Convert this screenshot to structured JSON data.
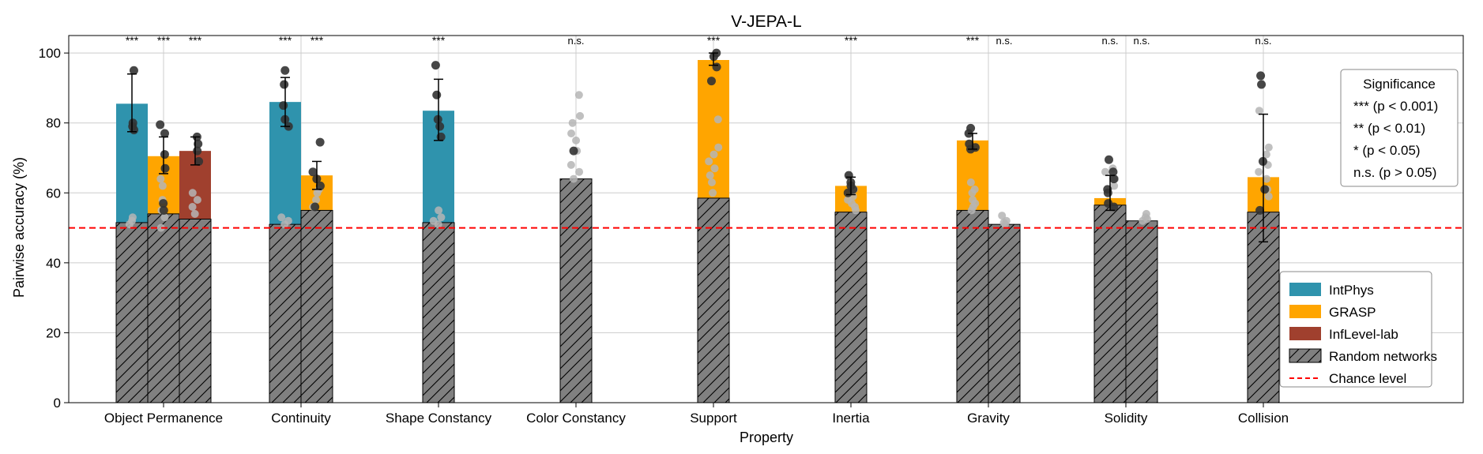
{
  "chart_data": {
    "type": "bar",
    "title": "V-JEPA-L",
    "xlabel": "Property",
    "ylabel": "Pairwise accuracy (%)",
    "ylim": [
      0,
      105
    ],
    "yticks": [
      0,
      20,
      40,
      60,
      80,
      100
    ],
    "grid": true,
    "chance_level": 50,
    "categories": [
      "Object Permanence",
      "Continuity",
      "Shape Constancy",
      "Color Constancy",
      "Support",
      "Inertia",
      "Gravity",
      "Solidity",
      "Collision"
    ],
    "series": [
      {
        "name": "IntPhys",
        "color": "#2f93ad"
      },
      {
        "name": "GRASP",
        "color": "#ffa500"
      },
      {
        "name": "InfLevel-lab",
        "color": "#a0402e"
      },
      {
        "name": "Random networks",
        "color": "#808080",
        "hatch": true
      },
      {
        "name": "Chance level",
        "color": "#ff0000",
        "dashed": true
      }
    ],
    "bars": [
      {
        "category": "Object Permanence",
        "dataset": "IntPhys",
        "value": 85.5,
        "random": 51.5,
        "err": [
          77.5,
          94.0
        ],
        "sig": "***",
        "points": [
          95,
          80,
          79,
          78
        ],
        "random_points": [
          52,
          53,
          51
        ]
      },
      {
        "category": "Object Permanence",
        "dataset": "GRASP",
        "value": 70.5,
        "random": 54.0,
        "err": [
          65.5,
          76.0
        ],
        "sig": "***",
        "points": [
          79.5,
          77,
          71,
          67,
          57,
          55
        ],
        "random_points": [
          64,
          62,
          58,
          55,
          53,
          50
        ]
      },
      {
        "category": "Object Permanence",
        "dataset": "InfLevel-lab",
        "value": 72.0,
        "random": 52.5,
        "err": [
          68.0,
          76.0
        ],
        "sig": "***",
        "points": [
          76,
          74,
          72,
          69
        ],
        "random_points": [
          60,
          58,
          56,
          54
        ]
      },
      {
        "category": "Continuity",
        "dataset": "IntPhys",
        "value": 86.0,
        "random": 51.0,
        "err": [
          79.0,
          93.0
        ],
        "sig": "***",
        "points": [
          95,
          91,
          85,
          81,
          79
        ],
        "random_points": [
          53,
          52,
          51
        ]
      },
      {
        "category": "Continuity",
        "dataset": "GRASP",
        "value": 65.0,
        "random": 55.0,
        "err": [
          61.0,
          69.0
        ],
        "sig": "***",
        "points": [
          74.5,
          66,
          64,
          62,
          56
        ],
        "random_points": [
          61,
          60,
          58,
          56
        ]
      },
      {
        "category": "Shape Constancy",
        "dataset": "IntPhys",
        "value": 83.5,
        "random": 51.5,
        "err": [
          75.0,
          92.5
        ],
        "sig": "***",
        "points": [
          96.5,
          88,
          81,
          79,
          76
        ],
        "random_points": [
          55,
          53,
          52,
          51
        ]
      },
      {
        "category": "Color Constancy",
        "dataset": "GRASP",
        "value": 64.0,
        "random": 64.0,
        "err": null,
        "sig": "n.s.",
        "points": [
          72
        ],
        "random_points": [
          88,
          82,
          80,
          77,
          75,
          72,
          68,
          66,
          64
        ]
      },
      {
        "category": "Support",
        "dataset": "GRASP",
        "value": 98.0,
        "random": 58.5,
        "err": [
          96.5,
          100.0
        ],
        "sig": "***",
        "points": [
          100,
          99,
          96,
          92
        ],
        "random_points": [
          81,
          73,
          71,
          69,
          67,
          65,
          63,
          60
        ]
      },
      {
        "category": "Inertia",
        "dataset": "GRASP",
        "value": 62.0,
        "random": 54.5,
        "err": [
          59.5,
          64.5
        ],
        "sig": "***",
        "points": [
          65,
          63,
          62,
          61,
          60
        ],
        "random_points": [
          61,
          59,
          58,
          57,
          56,
          55
        ]
      },
      {
        "category": "Gravity",
        "dataset": "GRASP",
        "value": 75.0,
        "random": 55.0,
        "err": [
          72.5,
          77.0
        ],
        "sig": "***",
        "points": [
          78.5,
          77,
          74,
          73,
          72.5
        ],
        "random_points": [
          63,
          61,
          60,
          58,
          57,
          56,
          55
        ]
      },
      {
        "category": "Gravity",
        "dataset": "GRASP",
        "value": 51.0,
        "random": 51.0,
        "err": null,
        "sig": "n.s.",
        "points": [],
        "random_points": [
          53.5,
          52,
          51.5,
          51
        ]
      },
      {
        "category": "Solidity",
        "dataset": "GRASP",
        "value": 58.5,
        "random": 56.5,
        "err": [
          55.0,
          65.0
        ],
        "sig": "n.s.",
        "points": [
          69.5,
          66,
          64,
          61,
          60,
          57,
          56
        ],
        "random_points": [
          67,
          66,
          64,
          62
        ]
      },
      {
        "category": "Solidity",
        "dataset": "GRASP",
        "value": 52.0,
        "random": 52.0,
        "err": null,
        "sig": "n.s.",
        "points": [],
        "random_points": [
          54,
          53,
          52.5,
          52
        ]
      },
      {
        "category": "Collision",
        "dataset": "GRASP",
        "value": 64.5,
        "random": 54.5,
        "err": [
          46.0,
          82.5
        ],
        "sig": "n.s.",
        "points": [
          93.5,
          91,
          69,
          61,
          55
        ],
        "random_points": [
          83.5,
          73,
          71,
          68,
          66,
          64,
          61,
          59
        ]
      }
    ],
    "significance_legend": {
      "title": "Significance",
      "items": [
        "*** (p < 0.001)",
        "** (p < 0.01)",
        "* (p < 0.05)",
        "n.s. (p > 0.05)"
      ],
      "placement": "top-right"
    },
    "legend_placement": "lower-right"
  }
}
